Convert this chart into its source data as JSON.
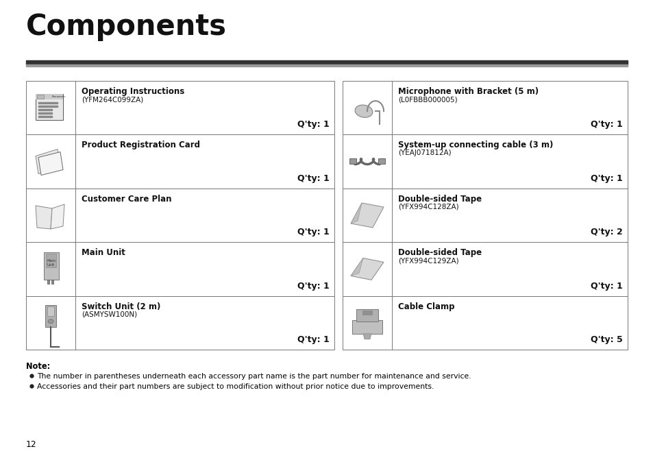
{
  "title": "Components",
  "title_fontsize": 30,
  "bg_color": "#ffffff",
  "page_number": "12",
  "left_items": [
    {
      "name": "Operating Instructions",
      "part": "(YFM264C099ZA)",
      "qty": "Q'ty: 1"
    },
    {
      "name": "Product Registration Card",
      "part": "",
      "qty": "Q'ty: 1"
    },
    {
      "name": "Customer Care Plan",
      "part": "",
      "qty": "Q'ty: 1"
    },
    {
      "name": "Main Unit",
      "part": "",
      "qty": "Q'ty: 1"
    },
    {
      "name": "Switch Unit (2 m)",
      "part": "(ASMYSW100N)",
      "qty": "Q'ty: 1"
    }
  ],
  "right_items": [
    {
      "name": "Microphone with Bracket (5 m)",
      "part": "(L0FBBB000005)",
      "qty": "Q'ty: 1"
    },
    {
      "name": "System-up connecting cable (3 m)",
      "part": "(YEAJ071812A)",
      "qty": "Q'ty: 1"
    },
    {
      "name": "Double-sided Tape",
      "part": "(YFX994C128ZA)",
      "qty": "Q'ty: 2"
    },
    {
      "name": "Double-sided Tape",
      "part": "(YFX994C129ZA)",
      "qty": "Q'ty: 1"
    },
    {
      "name": "Cable Clamp",
      "part": "",
      "qty": "Q'ty: 5"
    }
  ],
  "note_title": "Note:",
  "note_bullets": [
    "The number in parentheses underneath each accessory part name is the part number for maintenance and service.",
    "Accessories and their part numbers are subject to modification without prior notice due to improvements."
  ],
  "table_border_color": "#777777",
  "name_fontsize": 8.5,
  "part_fontsize": 7.5,
  "qty_fontsize": 9,
  "note_fontsize": 7.8
}
